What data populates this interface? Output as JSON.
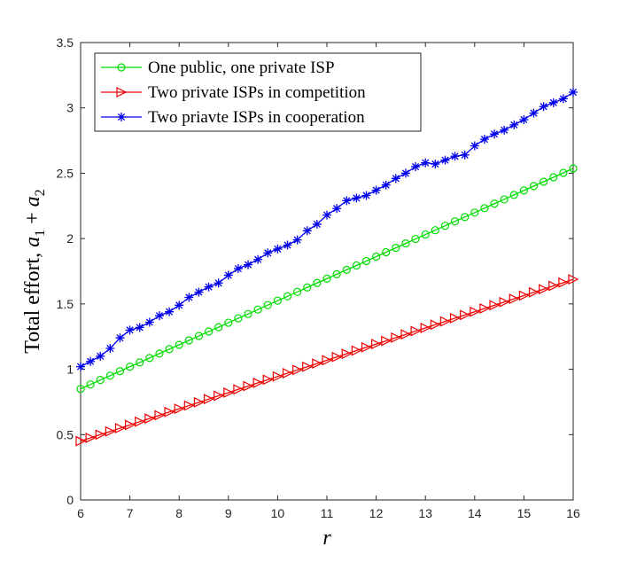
{
  "chart_data": {
    "type": "line",
    "xlabel": "r",
    "ylabel_text": "Total effort, ",
    "ylabel_math": {
      "a": "a",
      "sub1": "1",
      "plus": " + ",
      "sub2": "2"
    },
    "xlim": [
      6,
      16
    ],
    "ylim": [
      0,
      3.5
    ],
    "x_ticks": [
      "6",
      "7",
      "8",
      "9",
      "10",
      "11",
      "12",
      "13",
      "14",
      "15",
      "16"
    ],
    "y_ticks": [
      "0",
      "0.5",
      "1",
      "1.5",
      "2",
      "2.5",
      "3",
      "3.5"
    ],
    "grid": false,
    "legend_position": "top-left",
    "x": [
      6.0,
      6.2,
      6.4,
      6.6,
      6.8,
      7.0,
      7.2,
      7.4,
      7.6,
      7.8,
      8.0,
      8.2,
      8.4,
      8.6,
      8.8,
      9.0,
      9.2,
      9.4,
      9.6,
      9.8,
      10.0,
      10.2,
      10.4,
      10.6,
      10.8,
      11.0,
      11.2,
      11.4,
      11.6,
      11.8,
      12.0,
      12.2,
      12.4,
      12.6,
      12.8,
      13.0,
      13.2,
      13.4,
      13.6,
      13.8,
      14.0,
      14.2,
      14.4,
      14.6,
      14.8,
      15.0,
      15.2,
      15.4,
      15.6,
      15.8,
      16.0
    ],
    "series": [
      {
        "name": "One public, one private ISP",
        "color": "#00dd00",
        "marker": "circle",
        "values": [
          0.85,
          0.884,
          0.918,
          0.951,
          0.985,
          1.019,
          1.052,
          1.086,
          1.12,
          1.154,
          1.187,
          1.221,
          1.255,
          1.289,
          1.322,
          1.356,
          1.39,
          1.423,
          1.457,
          1.491,
          1.525,
          1.558,
          1.592,
          1.626,
          1.66,
          1.693,
          1.727,
          1.761,
          1.794,
          1.828,
          1.862,
          1.896,
          1.929,
          1.963,
          1.997,
          2.031,
          2.064,
          2.098,
          2.132,
          2.165,
          2.199,
          2.233,
          2.267,
          2.3,
          2.334,
          2.368,
          2.402,
          2.435,
          2.469,
          2.503,
          2.537
        ]
      },
      {
        "name": "Two private ISPs in competition",
        "color": "#ee0000",
        "marker": "triangle-right",
        "values": [
          0.45,
          0.475,
          0.5,
          0.524,
          0.549,
          0.574,
          0.599,
          0.623,
          0.648,
          0.673,
          0.698,
          0.722,
          0.747,
          0.772,
          0.797,
          0.821,
          0.846,
          0.871,
          0.896,
          0.92,
          0.945,
          0.97,
          0.995,
          1.019,
          1.044,
          1.069,
          1.094,
          1.118,
          1.143,
          1.168,
          1.193,
          1.217,
          1.242,
          1.267,
          1.292,
          1.316,
          1.341,
          1.366,
          1.391,
          1.415,
          1.44,
          1.465,
          1.49,
          1.514,
          1.539,
          1.564,
          1.589,
          1.613,
          1.638,
          1.663,
          1.688
        ]
      },
      {
        "name": "Two priavte ISPs in cooperation",
        "color": "#0000ee",
        "marker": "asterisk",
        "values": [
          1.02,
          1.06,
          1.1,
          1.16,
          1.24,
          1.3,
          1.32,
          1.36,
          1.41,
          1.44,
          1.49,
          1.55,
          1.59,
          1.63,
          1.66,
          1.72,
          1.77,
          1.8,
          1.84,
          1.89,
          1.92,
          1.95,
          1.99,
          2.06,
          2.11,
          2.18,
          2.23,
          2.29,
          2.31,
          2.33,
          2.37,
          2.41,
          2.46,
          2.5,
          2.55,
          2.58,
          2.57,
          2.6,
          2.63,
          2.64,
          2.71,
          2.76,
          2.8,
          2.83,
          2.87,
          2.91,
          2.96,
          3.01,
          3.04,
          3.07,
          3.12
        ]
      }
    ]
  }
}
